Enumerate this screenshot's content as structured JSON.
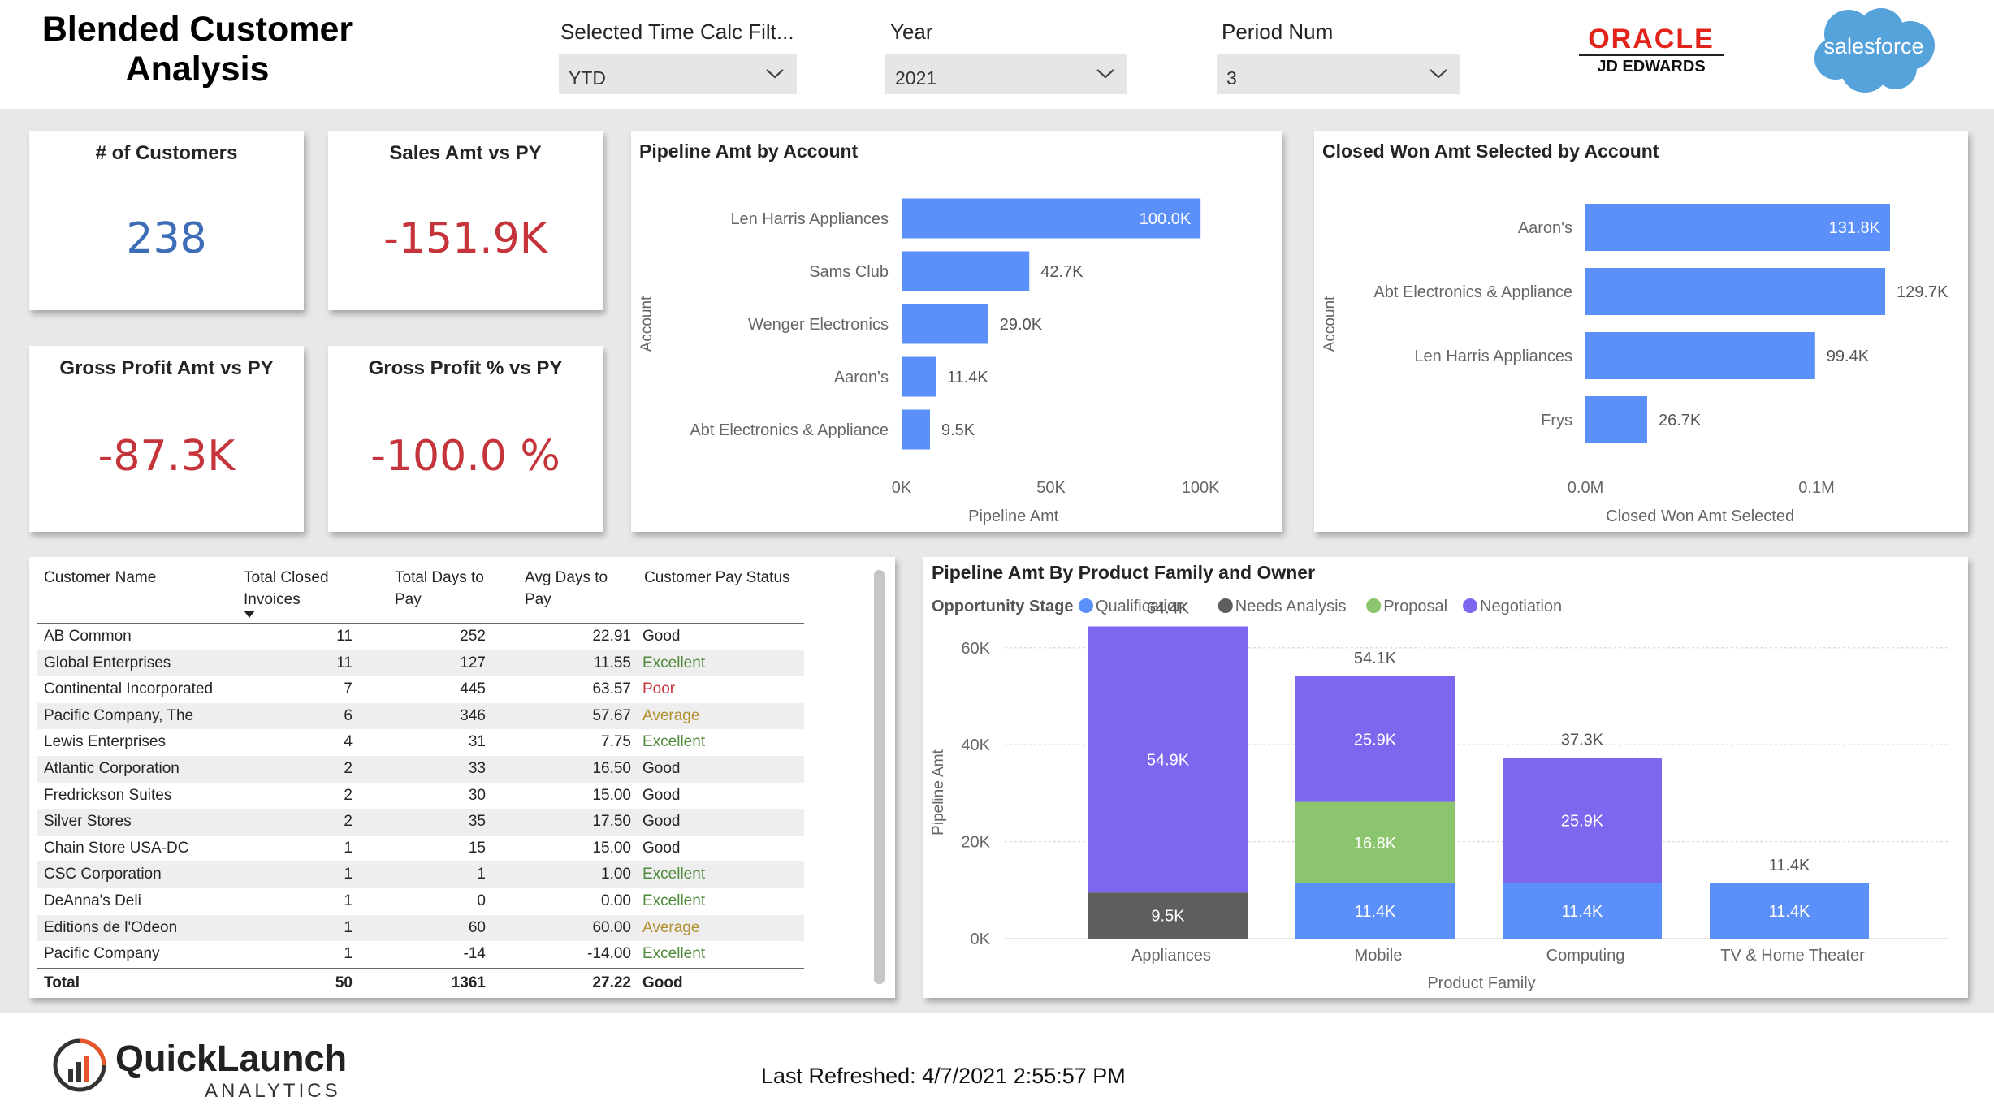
{
  "header": {
    "title_line1": "Blended Customer",
    "title_line2": "Analysis",
    "filters": [
      {
        "label": "Selected Time Calc Filt...",
        "value": "YTD"
      },
      {
        "label": "Year",
        "value": "2021"
      },
      {
        "label": "Period Num",
        "value": "3"
      }
    ],
    "oracle_logo_text": "ORACLE",
    "oracle_logo_sub": "JD EDWARDS",
    "salesforce_logo_text": "salesforce"
  },
  "kpis": [
    {
      "title": "# of Customers",
      "value": "238",
      "color": "#3d6db7"
    },
    {
      "title": "Sales Amt vs PY",
      "value": "-151.9K",
      "color": "#c4343a"
    },
    {
      "title": "Gross Profit Amt vs PY",
      "value": "-87.3K",
      "color": "#c4343a"
    },
    {
      "title": "Gross Profit % vs PY",
      "value": "-100.0 %",
      "color": "#c4343a"
    }
  ],
  "pipeline_by_account": {
    "title": "Pipeline Amt by Account",
    "chart_data": {
      "type": "bar",
      "orientation": "horizontal",
      "categories": [
        "Len Harris Appliances",
        "Sams Club",
        "Wenger Electronics",
        "Aaron's",
        "Abt Electronics & Appliance"
      ],
      "values": [
        100000,
        42700,
        29000,
        11400,
        9500
      ],
      "data_labels": [
        "100.0K",
        "42.7K",
        "29.0K",
        "11.4K",
        "9.5K"
      ],
      "xlabel": "Pipeline Amt",
      "ylabel": "Account",
      "xlim": [
        0,
        110000
      ],
      "xticks": [
        0,
        50000,
        100000
      ],
      "xtick_labels": [
        "0K",
        "50K",
        "100K"
      ],
      "bar_color": "#5b8ff9",
      "grid": false
    }
  },
  "closed_won_by_account": {
    "title": "Closed Won Amt Selected by Account",
    "chart_data": {
      "type": "bar",
      "orientation": "horizontal",
      "categories": [
        "Aaron's",
        "Abt Electronics & Appliance",
        "Len Harris Appliances",
        "Frys"
      ],
      "values": [
        131800,
        129700,
        99400,
        26700
      ],
      "data_labels": [
        "131.8K",
        "129.7K",
        "99.4K",
        "26.7K"
      ],
      "xlabel": "Closed Won Amt Selected",
      "ylabel": "Account",
      "xlim": [
        0,
        155000
      ],
      "xticks": [
        0,
        100000
      ],
      "xtick_labels": [
        "0.0M",
        "0.1M"
      ],
      "bar_color": "#5b8ff9",
      "grid": false
    }
  },
  "customer_table": {
    "columns": [
      "Customer Name",
      "Total Closed Invoices",
      "Total Days to Pay",
      "Avg Days to Pay",
      "Customer Pay Status"
    ],
    "status_colors": {
      "Good": "#252423",
      "Excellent": "#4f8a3a",
      "Poor": "#c4343a",
      "Average": "#b08f2e"
    },
    "rows": [
      [
        "AB Common",
        "11",
        "252",
        "22.91",
        "Good"
      ],
      [
        "Global Enterprises",
        "11",
        "127",
        "11.55",
        "Excellent"
      ],
      [
        "Continental Incorporated",
        "7",
        "445",
        "63.57",
        "Poor"
      ],
      [
        "Pacific Company, The",
        "6",
        "346",
        "57.67",
        "Average"
      ],
      [
        "Lewis Enterprises",
        "4",
        "31",
        "7.75",
        "Excellent"
      ],
      [
        "Atlantic Corporation",
        "2",
        "33",
        "16.50",
        "Good"
      ],
      [
        "Fredrickson Suites",
        "2",
        "30",
        "15.00",
        "Good"
      ],
      [
        "Silver Stores",
        "2",
        "35",
        "17.50",
        "Good"
      ],
      [
        "Chain Store USA-DC",
        "1",
        "15",
        "15.00",
        "Good"
      ],
      [
        "CSC Corporation",
        "1",
        "1",
        "1.00",
        "Excellent"
      ],
      [
        "DeAnna's Deli",
        "1",
        "0",
        "0.00",
        "Excellent"
      ],
      [
        "Editions de l'Odeon",
        "1",
        "60",
        "60.00",
        "Average"
      ],
      [
        "Pacific Company",
        "1",
        "-14",
        "-14.00",
        "Excellent"
      ]
    ],
    "total": [
      "Total",
      "50",
      "1361",
      "27.22",
      "Good"
    ]
  },
  "product_family_chart": {
    "title": "Pipeline Amt By Product Family and Owner",
    "legend_title": "Opportunity Stage",
    "chart_data": {
      "type": "bar",
      "stacked": true,
      "categories": [
        "Appliances",
        "Mobile",
        "Computing",
        "TV & Home Theater"
      ],
      "series": [
        {
          "name": "Qualification",
          "color": "#5b8ff9",
          "values": [
            0,
            11400,
            11400,
            11400
          ],
          "labels": [
            "",
            "11.4K",
            "11.4K",
            "11.4K"
          ]
        },
        {
          "name": "Needs Analysis",
          "color": "#605e5c",
          "values": [
            9500,
            0,
            0,
            0
          ],
          "labels": [
            "9.5K",
            "",
            "",
            ""
          ]
        },
        {
          "name": "Proposal",
          "color": "#8bc56d",
          "values": [
            0,
            16800,
            0,
            0
          ],
          "labels": [
            "",
            "16.8K",
            "",
            ""
          ]
        },
        {
          "name": "Negotiation",
          "color": "#7b68ee",
          "values": [
            54900,
            25900,
            25900,
            0
          ],
          "labels": [
            "54.9K",
            "25.9K",
            "25.9K",
            ""
          ]
        }
      ],
      "totals": [
        "64.4K",
        "54.1K",
        "37.3K",
        "11.4K"
      ],
      "xlabel": "Product Family",
      "ylabel": "Pipeline Amt",
      "ylim": [
        0,
        68000
      ],
      "yticks": [
        0,
        20000,
        40000,
        60000
      ],
      "ytick_labels": [
        "0K",
        "20K",
        "40K",
        "60K"
      ],
      "grid": true,
      "legend_position": "top-left"
    }
  },
  "footer": {
    "brand_name": "QuickLaunch",
    "brand_sub": "ANALYTICS",
    "last_refreshed": "Last Refreshed: 4/7/2021 2:55:57 PM"
  }
}
